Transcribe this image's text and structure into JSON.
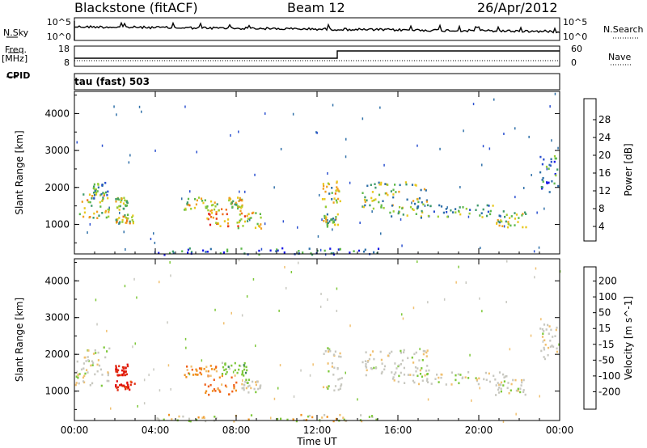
{
  "header": {
    "station": "Blackstone (fitACF)",
    "beam": "Beam 12",
    "date": "26/Apr/2012"
  },
  "top_panels": {
    "nsky_label": "N.Sky",
    "nsearch_label": "N.Search",
    "noise_ticks": [
      "10^5",
      "10^0"
    ],
    "freq_label": "Freq.",
    "freq_unit": "[MHz]",
    "freq_ticks": [
      "18",
      "8"
    ],
    "nave_label": "Nave",
    "nave_ticks": [
      "60",
      "0"
    ],
    "cpid_label": "CPID",
    "cpid_value": "tau (fast) 503"
  },
  "chart_data": [
    {
      "type": "heatmap",
      "title": "",
      "ylabel": "Slant Range [km]",
      "xlabel": "",
      "x_ticks": [
        "00:00",
        "04:00",
        "08:00",
        "12:00",
        "16:00",
        "20:00",
        "00:00"
      ],
      "y_ticks": [
        "1000",
        "2000",
        "3000",
        "4000"
      ],
      "xlim_hours": [
        0,
        24
      ],
      "ylim_km": [
        200,
        4600
      ],
      "colorbar": {
        "label": "Power [dB]",
        "ticks": [
          "4",
          "8",
          "12",
          "16",
          "20",
          "24",
          "28"
        ],
        "colors": [
          "#1a1ae6",
          "#2a4fd0",
          "#2e6fa8",
          "#3e9a6a",
          "#5db84a",
          "#9acd32",
          "#e8c81e",
          "#f0a020",
          "#f07018",
          "#e83a14",
          "#e00e0e"
        ]
      },
      "echo_regions": [
        {
          "t": [
            0.0,
            1.7
          ],
          "r": [
            1150,
            1900
          ],
          "level": 0.55
        },
        {
          "t": [
            0.9,
            1.7
          ],
          "r": [
            1700,
            2150
          ],
          "level": 0.35
        },
        {
          "t": [
            2.0,
            2.6
          ],
          "r": [
            1400,
            1750
          ],
          "level": 0.45
        },
        {
          "t": [
            2.0,
            2.9
          ],
          "r": [
            1050,
            1300
          ],
          "level": 0.55
        },
        {
          "t": [
            5.4,
            7.2
          ],
          "r": [
            1400,
            1750
          ],
          "level": 0.5
        },
        {
          "t": [
            6.5,
            7.6
          ],
          "r": [
            950,
            1450
          ],
          "level": 0.7
        },
        {
          "t": [
            7.6,
            8.3
          ],
          "r": [
            1450,
            1750
          ],
          "level": 0.55
        },
        {
          "t": [
            8.0,
            9.2
          ],
          "r": [
            900,
            1400
          ],
          "level": 0.6
        },
        {
          "t": [
            12.2,
            13.2
          ],
          "r": [
            1500,
            2200
          ],
          "level": 0.5
        },
        {
          "t": [
            12.2,
            13.0
          ],
          "r": [
            950,
            1300
          ],
          "level": 0.45
        },
        {
          "t": [
            14.2,
            17.5
          ],
          "r": [
            1450,
            2200
          ],
          "level": 0.45
        },
        {
          "t": [
            15.5,
            21.5
          ],
          "r": [
            1200,
            1550
          ],
          "level": 0.35
        },
        {
          "t": [
            20.8,
            22.3
          ],
          "r": [
            900,
            1350
          ],
          "level": 0.5
        },
        {
          "t": [
            23.0,
            23.9
          ],
          "r": [
            1900,
            2900
          ],
          "level": 0.25
        },
        {
          "t": [
            4.0,
            15.0
          ],
          "r": [
            200,
            380
          ],
          "level": 0.2
        }
      ]
    },
    {
      "type": "heatmap",
      "title": "",
      "ylabel": "Slant Range [km]",
      "xlabel": "Time UT",
      "x_ticks": [
        "00:00",
        "04:00",
        "08:00",
        "12:00",
        "16:00",
        "20:00",
        "00:00"
      ],
      "y_ticks": [
        "1000",
        "2000",
        "3000",
        "4000"
      ],
      "xlim_hours": [
        0,
        24
      ],
      "ylim_km": [
        200,
        4600
      ],
      "colorbar": {
        "label": "Velocity [m s^-1]",
        "ticks": [
          "200",
          "100",
          "50",
          "15",
          "-15",
          "-50",
          "-100",
          "-200"
        ],
        "colors": [
          "#1c3fc4",
          "#2e6aa0",
          "#3b8a56",
          "#7ec83a",
          "#c8c8c0",
          "#f0c070",
          "#f09020",
          "#f06018",
          "#e02a10",
          "#e00a0a"
        ]
      },
      "echo_regions": [
        {
          "t": [
            0.0,
            1.7
          ],
          "r": [
            1150,
            2250
          ],
          "v": "gray"
        },
        {
          "t": [
            2.0,
            2.6
          ],
          "r": [
            1450,
            1750
          ],
          "v": "red"
        },
        {
          "t": [
            2.0,
            3.0
          ],
          "r": [
            1050,
            1300
          ],
          "v": "red"
        },
        {
          "t": [
            5.4,
            7.0
          ],
          "r": [
            1400,
            1750
          ],
          "v": "orange"
        },
        {
          "t": [
            6.4,
            8.0
          ],
          "r": [
            900,
            1450
          ],
          "v": "orange"
        },
        {
          "t": [
            7.2,
            8.5
          ],
          "r": [
            1450,
            1800
          ],
          "v": "green"
        },
        {
          "t": [
            8.2,
            9.2
          ],
          "r": [
            950,
            1350
          ],
          "v": "gray"
        },
        {
          "t": [
            12.2,
            13.2
          ],
          "r": [
            1000,
            2200
          ],
          "v": "gray"
        },
        {
          "t": [
            14.2,
            17.5
          ],
          "r": [
            1450,
            2200
          ],
          "v": "gray"
        },
        {
          "t": [
            15.5,
            21.5
          ],
          "r": [
            1200,
            1550
          ],
          "v": "gray"
        },
        {
          "t": [
            20.8,
            22.3
          ],
          "r": [
            900,
            1350
          ],
          "v": "gray"
        },
        {
          "t": [
            23.0,
            23.9
          ],
          "r": [
            1900,
            2900
          ],
          "v": "gray"
        },
        {
          "t": [
            4.0,
            15.0
          ],
          "r": [
            200,
            380
          ],
          "v": "mixed"
        }
      ]
    }
  ]
}
